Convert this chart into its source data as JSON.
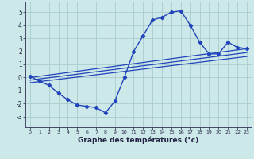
{
  "xlabel": "Graphe des températures (°c)",
  "background_color": "#cce8e8",
  "grid_color": "#aacccc",
  "line_color": "#2244bb",
  "xlim": [
    -0.5,
    23.5
  ],
  "ylim": [
    -3.8,
    5.8
  ],
  "xticks": [
    0,
    1,
    2,
    3,
    4,
    5,
    6,
    7,
    8,
    9,
    10,
    11,
    12,
    13,
    14,
    15,
    16,
    17,
    18,
    19,
    20,
    21,
    22,
    23
  ],
  "yticks": [
    -3,
    -2,
    -1,
    0,
    1,
    2,
    3,
    4,
    5
  ],
  "line1_x": [
    0,
    1,
    2,
    3,
    4,
    5,
    6,
    7,
    8,
    9,
    10,
    11,
    12,
    13,
    14,
    15,
    16,
    17,
    18,
    19,
    20,
    21,
    22,
    23
  ],
  "line1_y": [
    0.1,
    -0.3,
    -0.6,
    -1.2,
    -1.7,
    -2.1,
    -2.2,
    -2.3,
    -2.7,
    -1.8,
    0.0,
    2.0,
    3.2,
    4.4,
    4.6,
    5.0,
    5.1,
    4.0,
    2.7,
    1.8,
    1.8,
    2.7,
    2.3,
    2.2
  ],
  "line2_x": [
    0,
    23
  ],
  "line2_y": [
    0.0,
    2.2
  ],
  "line3_x": [
    0,
    23
  ],
  "line3_y": [
    -0.2,
    1.9
  ],
  "line4_x": [
    0,
    23
  ],
  "line4_y": [
    -0.4,
    1.6
  ]
}
